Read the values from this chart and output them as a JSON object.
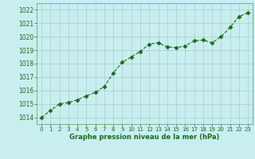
{
  "x": [
    0,
    1,
    2,
    3,
    4,
    5,
    6,
    7,
    8,
    9,
    10,
    11,
    12,
    13,
    14,
    15,
    16,
    17,
    18,
    19,
    20,
    21,
    22,
    23
  ],
  "y": [
    1014.0,
    1014.5,
    1015.0,
    1015.1,
    1015.3,
    1015.6,
    1015.85,
    1016.3,
    1017.3,
    1018.1,
    1018.5,
    1018.9,
    1019.45,
    1019.55,
    1019.25,
    1019.2,
    1019.3,
    1019.7,
    1019.75,
    1019.55,
    1020.0,
    1020.7,
    1021.5,
    1021.8
  ],
  "line_color": "#1a6b1a",
  "marker": "D",
  "marker_size": 2.5,
  "bg_color": "#c8eef0",
  "grid_color": "#a8cec8",
  "xlabel": "Graphe pression niveau de la mer (hPa)",
  "xlabel_color": "#1a6b1a",
  "tick_color": "#1a6b1a",
  "ylim": [
    1013.5,
    1022.5
  ],
  "yticks": [
    1014,
    1015,
    1016,
    1017,
    1018,
    1019,
    1020,
    1021,
    1022
  ],
  "xticks": [
    0,
    1,
    2,
    3,
    4,
    5,
    6,
    7,
    8,
    9,
    10,
    11,
    12,
    13,
    14,
    15,
    16,
    17,
    18,
    19,
    20,
    21,
    22,
    23
  ],
  "linewidth": 0.8,
  "linestyle": "--"
}
